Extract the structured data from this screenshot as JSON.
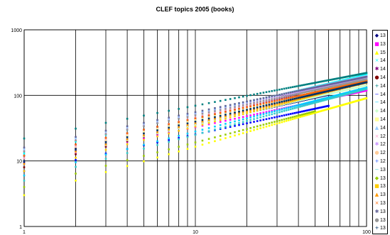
{
  "chart_data": {
    "type": "scatter",
    "title": "CLEF topics 2005 (books)",
    "xlabel": "",
    "ylabel": "",
    "x_scale": "log",
    "y_scale": "log",
    "xlim": [
      1,
      100
    ],
    "ylim": [
      1,
      1000
    ],
    "x_ticks": [
      "1",
      "10",
      "100"
    ],
    "y_ticks": [
      "1",
      "10",
      "100",
      "1000"
    ],
    "grid": true,
    "legend_position": "right",
    "series": [
      {
        "name": "13",
        "color": "#000080",
        "marker": "◆",
        "a": 9.5,
        "b": 0.58,
        "n": 60
      },
      {
        "name": "13",
        "color": "#ff00ff",
        "marker": "■",
        "a": 9.0,
        "b": 0.56,
        "n": 100
      },
      {
        "name": "15",
        "color": "#ffff00",
        "marker": "▲",
        "a": 3.0,
        "b": 0.74,
        "n": 100
      },
      {
        "name": "14",
        "color": "#00ffff",
        "marker": "×",
        "a": 13.0,
        "b": 0.6,
        "n": 100
      },
      {
        "name": "14",
        "color": "#800080",
        "marker": "✱",
        "a": 10.0,
        "b": 0.64,
        "n": 100
      },
      {
        "name": "14",
        "color": "#800000",
        "marker": "●",
        "a": 8.0,
        "b": 0.66,
        "n": 100
      },
      {
        "name": "14",
        "color": "#008080",
        "marker": "+",
        "a": 22.0,
        "b": 0.5,
        "n": 100
      },
      {
        "name": "14",
        "color": "#0000ff",
        "marker": "−",
        "a": 7.0,
        "b": 0.56,
        "n": 60
      },
      {
        "name": "14",
        "color": "#00ccff",
        "marker": "−",
        "a": 6.0,
        "b": 0.67,
        "n": 100
      },
      {
        "name": "14",
        "color": "#ccffcc",
        "marker": "◆",
        "a": 9.0,
        "b": 0.6,
        "n": 100
      },
      {
        "name": "14",
        "color": "#ffff99",
        "marker": "■",
        "a": 11.0,
        "b": 0.58,
        "n": 100
      },
      {
        "name": "14",
        "color": "#99ccff",
        "marker": "▲",
        "a": 15.0,
        "b": 0.56,
        "n": 100
      },
      {
        "name": "12",
        "color": "#ff99cc",
        "marker": "×",
        "a": 11.0,
        "b": 0.62,
        "n": 100
      },
      {
        "name": "12",
        "color": "#cc99ff",
        "marker": "✱",
        "a": 14.0,
        "b": 0.56,
        "n": 100
      },
      {
        "name": "12",
        "color": "#ffcc99",
        "marker": "●",
        "a": 10.0,
        "b": 0.6,
        "n": 100
      },
      {
        "name": "12",
        "color": "#3366ff",
        "marker": "+",
        "a": 12.0,
        "b": 0.57,
        "n": 100
      },
      {
        "name": "13",
        "color": "#33cccc",
        "marker": "−",
        "a": 5.0,
        "b": 0.7,
        "n": 100
      },
      {
        "name": "13",
        "color": "#99cc00",
        "marker": "◆",
        "a": 4.0,
        "b": 0.68,
        "n": 50
      },
      {
        "name": "13",
        "color": "#ffcc00",
        "marker": "■",
        "a": 7.0,
        "b": 0.68,
        "n": 100
      },
      {
        "name": "13",
        "color": "#ff9900",
        "marker": "▲",
        "a": 9.0,
        "b": 0.62,
        "n": 100
      },
      {
        "name": "13",
        "color": "#ff6600",
        "marker": "×",
        "a": 12.0,
        "b": 0.57,
        "n": 100
      },
      {
        "name": "13",
        "color": "#666699",
        "marker": "✱",
        "a": 16.0,
        "b": 0.54,
        "n": 100
      },
      {
        "name": "13",
        "color": "#969696",
        "marker": "●",
        "a": 14.0,
        "b": 0.55,
        "n": 100
      },
      {
        "name": "13",
        "color": "#003366",
        "marker": "+",
        "a": 10.0,
        "b": 0.6,
        "n": 100
      }
    ]
  }
}
